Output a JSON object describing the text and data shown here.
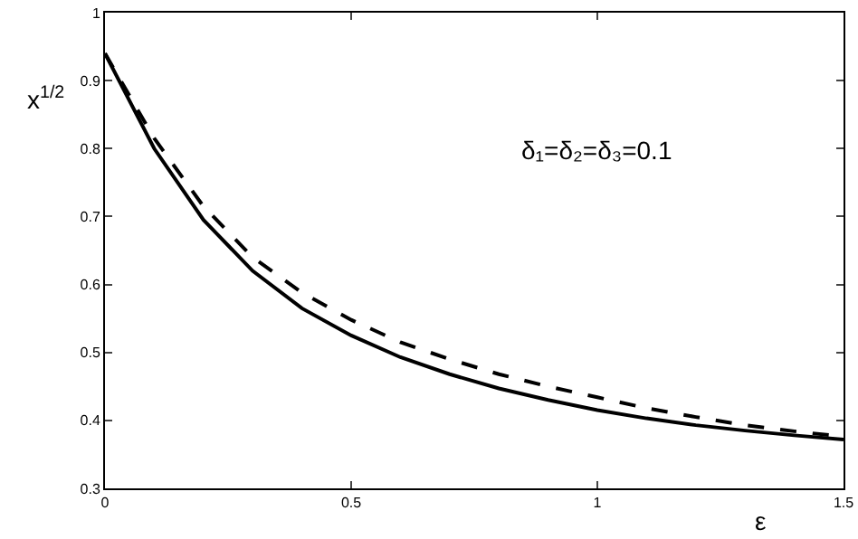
{
  "chart_data": {
    "type": "line",
    "xlabel": "ε",
    "ylabel": "x$^{1/2}$",
    "annotations": [
      "δ₁=δ₂=δ₃=0.1"
    ],
    "x": [
      0,
      0.1,
      0.2,
      0.3,
      0.4,
      0.5,
      0.6,
      0.7,
      0.8,
      0.9,
      1.0,
      1.1,
      1.2,
      1.3,
      1.4,
      1.5
    ],
    "series": [
      {
        "color": "#000000",
        "line_style": "solid",
        "values": [
          0.94,
          0.8,
          0.695,
          0.62,
          0.565,
          0.525,
          0.493,
          0.468,
          0.447,
          0.43,
          0.415,
          0.403,
          0.393,
          0.385,
          0.378,
          0.372
        ]
      },
      {
        "color": "#000000",
        "line_style": "dashed",
        "values": [
          0.94,
          0.815,
          0.715,
          0.64,
          0.588,
          0.548,
          0.515,
          0.49,
          0.468,
          0.45,
          0.434,
          0.418,
          0.405,
          0.393,
          0.384,
          0.376
        ]
      }
    ],
    "xlim": [
      0,
      1.5
    ],
    "xticks": [
      0,
      0.5,
      1,
      1.5
    ],
    "ylim": [
      0.3,
      1
    ],
    "yticks": [
      0.3,
      0.4,
      0.5,
      0.6,
      0.7,
      0.8,
      0.9,
      1
    ],
    "grid": false,
    "marker": "none"
  }
}
